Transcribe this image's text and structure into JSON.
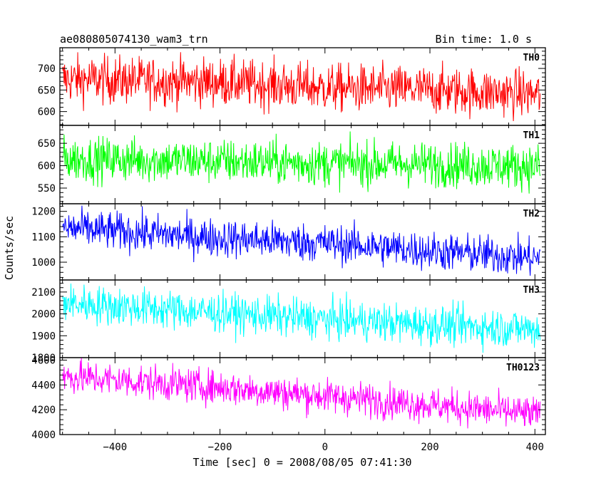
{
  "header": {
    "title": "ae080805074130_wam3_trn",
    "bin_time": "Bin time: 1.0 s"
  },
  "axes": {
    "xlabel": "Time [sec] 0 = 2008/08/05 07:41:30",
    "ylabel": "Counts/sec"
  },
  "chart_data": {
    "type": "line",
    "title": "ae080805074130_wam3_trn",
    "subtitle": "Bin time: 1.0 s",
    "xlabel": "Time [sec] 0 = 2008/08/05 07:41:30",
    "ylabel": "Counts/sec",
    "xlim": [
      -505,
      420
    ],
    "x_ticks": [
      -400,
      -200,
      0,
      200,
      400
    ],
    "x_range_data": [
      -500,
      410
    ],
    "bin_time_s": 1.0,
    "grid": false,
    "panels": [
      {
        "name": "TH0",
        "color": "#ff0000",
        "ylim": [
          568,
          748
        ],
        "y_ticks": [
          600,
          650,
          700
        ],
        "trend": [
          [
            -500,
            675
          ],
          [
            -200,
            668
          ],
          [
            0,
            655
          ],
          [
            200,
            650
          ],
          [
            410,
            640
          ]
        ],
        "approx_spread": 28
      },
      {
        "name": "TH1",
        "color": "#00ff00",
        "ylim": [
          515,
          690
        ],
        "y_ticks": [
          550,
          600,
          650
        ],
        "trend": [
          [
            -500,
            615
          ],
          [
            -200,
            610
          ],
          [
            0,
            605
          ],
          [
            200,
            603
          ],
          [
            410,
            598
          ]
        ],
        "approx_spread": 25
      },
      {
        "name": "TH2",
        "color": "#0000ff",
        "ylim": [
          930,
          1230
        ],
        "y_ticks": [
          1000,
          1100,
          1200
        ],
        "trend": [
          [
            -500,
            1135
          ],
          [
            -200,
            1095
          ],
          [
            0,
            1075
          ],
          [
            200,
            1045
          ],
          [
            410,
            1015
          ]
        ],
        "approx_spread": 38
      },
      {
        "name": "TH3",
        "color": "#00ffff",
        "ylim": [
          1800,
          2155
        ],
        "y_ticks": [
          1800,
          1900,
          2000,
          2100
        ],
        "trend": [
          [
            -500,
            2050
          ],
          [
            -200,
            2005
          ],
          [
            0,
            1975
          ],
          [
            200,
            1950
          ],
          [
            410,
            1930
          ]
        ],
        "approx_spread": 45
      },
      {
        "name": "TH0123",
        "color": "#ff00ff",
        "ylim": [
          4000,
          4620
        ],
        "y_ticks": [
          4000,
          4200,
          4400,
          4600
        ],
        "trend": [
          [
            -500,
            4470
          ],
          [
            -200,
            4380
          ],
          [
            0,
            4310
          ],
          [
            200,
            4240
          ],
          [
            410,
            4160
          ]
        ],
        "approx_spread": 70
      }
    ]
  }
}
